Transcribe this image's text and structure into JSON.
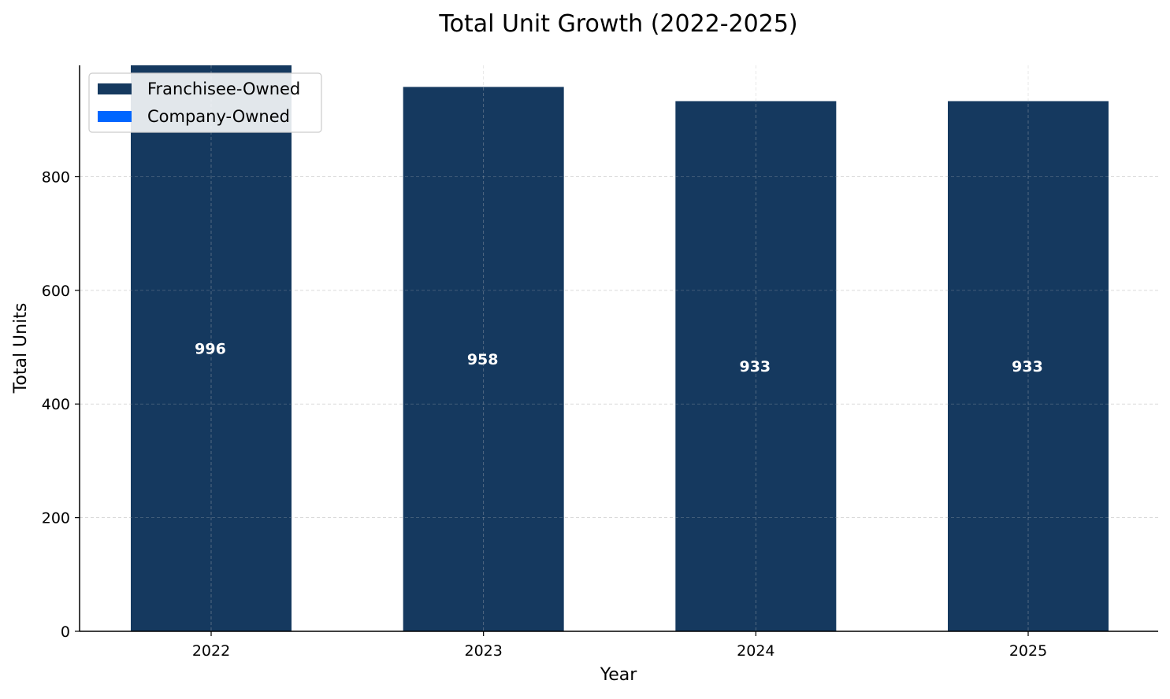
{
  "chart_data": {
    "type": "bar",
    "stacked": true,
    "title": "Total Unit Growth (2022-2025)",
    "xlabel": "Year",
    "ylabel": "Total Units",
    "categories": [
      "2022",
      "2023",
      "2024",
      "2025"
    ],
    "series": [
      {
        "name": "Franchisee-Owned",
        "color": "#15395f",
        "values": [
          996,
          958,
          933,
          933
        ]
      },
      {
        "name": "Company-Owned",
        "color": "#0066ff",
        "values": [
          0,
          0,
          0,
          0
        ]
      }
    ],
    "totals": [
      "996",
      "958",
      "933",
      "933"
    ],
    "ylim": [
      0,
      996
    ],
    "yticks": [
      0,
      200,
      400,
      600,
      800
    ],
    "grid": true,
    "legend_position": "top-left"
  }
}
